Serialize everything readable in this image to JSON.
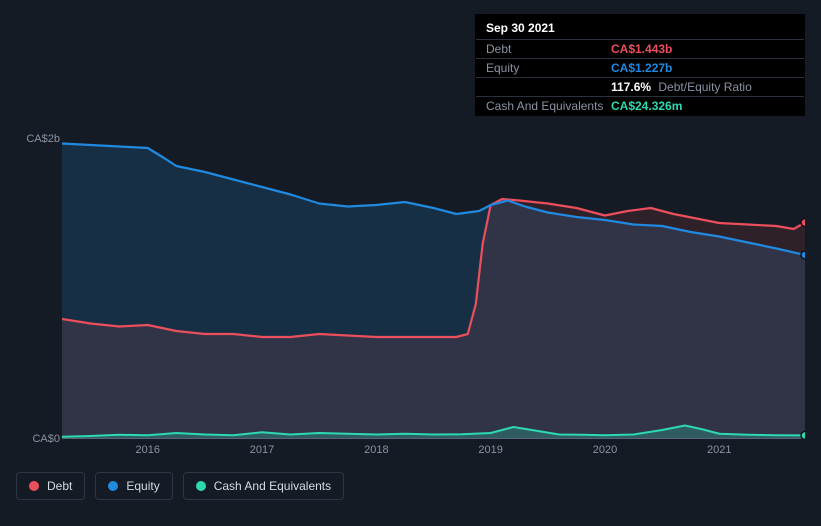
{
  "tooltip": {
    "title": "Sep 30 2021",
    "rows": [
      {
        "label": "Debt",
        "value": "CA$1.443b",
        "color": "#eb4f5c",
        "extra": ""
      },
      {
        "label": "Equity",
        "value": "CA$1.227b",
        "color": "#1f8ae0",
        "extra": ""
      },
      {
        "label": "",
        "value": "117.6%",
        "color": "#ffffff",
        "extra": "Debt/Equity Ratio"
      },
      {
        "label": "Cash And Equivalents",
        "value": "CA$24.326m",
        "color": "#2dd9b0",
        "extra": ""
      }
    ]
  },
  "chart": {
    "background": "#151b24",
    "plot_bg_left": "#1b2a3e",
    "plot_bg_right": "#2a1f2e",
    "grid_color": "#2a3240",
    "y_axis": {
      "min": 0,
      "max": 2000,
      "ticks": [
        {
          "v": 0,
          "label": "CA$0"
        },
        {
          "v": 2000,
          "label": "CA$2b"
        }
      ]
    },
    "x_axis": {
      "min": 2015.25,
      "max": 2021.75,
      "ticks": [
        2016,
        2017,
        2018,
        2019,
        2020,
        2021
      ]
    },
    "series": {
      "equity": {
        "label": "Equity",
        "color": "#1f8ae0",
        "fill": "#1f8ae0",
        "fill_opacity": 0.18,
        "width": 2.2,
        "points": [
          [
            2015.25,
            1970
          ],
          [
            2015.5,
            1960
          ],
          [
            2015.75,
            1950
          ],
          [
            2016.0,
            1940
          ],
          [
            2016.15,
            1870
          ],
          [
            2016.25,
            1820
          ],
          [
            2016.5,
            1780
          ],
          [
            2016.75,
            1730
          ],
          [
            2017.0,
            1680
          ],
          [
            2017.25,
            1630
          ],
          [
            2017.5,
            1570
          ],
          [
            2017.75,
            1550
          ],
          [
            2018.0,
            1560
          ],
          [
            2018.25,
            1580
          ],
          [
            2018.5,
            1540
          ],
          [
            2018.7,
            1500
          ],
          [
            2018.9,
            1520
          ],
          [
            2019.0,
            1560
          ],
          [
            2019.15,
            1590
          ],
          [
            2019.3,
            1550
          ],
          [
            2019.5,
            1510
          ],
          [
            2019.75,
            1480
          ],
          [
            2020.0,
            1460
          ],
          [
            2020.25,
            1430
          ],
          [
            2020.5,
            1420
          ],
          [
            2020.75,
            1380
          ],
          [
            2021.0,
            1350
          ],
          [
            2021.25,
            1310
          ],
          [
            2021.5,
            1270
          ],
          [
            2021.75,
            1227
          ]
        ]
      },
      "debt": {
        "label": "Debt",
        "color": "#eb4f5c",
        "fill": "#eb4f5c",
        "fill_opacity": 0.12,
        "width": 2.2,
        "points": [
          [
            2015.25,
            800
          ],
          [
            2015.5,
            770
          ],
          [
            2015.75,
            750
          ],
          [
            2016.0,
            760
          ],
          [
            2016.25,
            720
          ],
          [
            2016.5,
            700
          ],
          [
            2016.75,
            700
          ],
          [
            2017.0,
            680
          ],
          [
            2017.25,
            680
          ],
          [
            2017.5,
            700
          ],
          [
            2017.75,
            690
          ],
          [
            2018.0,
            680
          ],
          [
            2018.25,
            680
          ],
          [
            2018.5,
            680
          ],
          [
            2018.7,
            680
          ],
          [
            2018.8,
            700
          ],
          [
            2018.87,
            900
          ],
          [
            2018.93,
            1300
          ],
          [
            2019.0,
            1560
          ],
          [
            2019.1,
            1600
          ],
          [
            2019.25,
            1590
          ],
          [
            2019.5,
            1570
          ],
          [
            2019.75,
            1540
          ],
          [
            2020.0,
            1490
          ],
          [
            2020.2,
            1520
          ],
          [
            2020.4,
            1540
          ],
          [
            2020.6,
            1500
          ],
          [
            2020.8,
            1470
          ],
          [
            2021.0,
            1440
          ],
          [
            2021.25,
            1430
          ],
          [
            2021.5,
            1420
          ],
          [
            2021.65,
            1400
          ],
          [
            2021.75,
            1443
          ]
        ]
      },
      "cash": {
        "label": "Cash And Equivalents",
        "color": "#2dd9b0",
        "fill": "#2dd9b0",
        "fill_opacity": 0.25,
        "width": 2,
        "points": [
          [
            2015.25,
            15
          ],
          [
            2015.5,
            20
          ],
          [
            2015.75,
            28
          ],
          [
            2016.0,
            25
          ],
          [
            2016.25,
            40
          ],
          [
            2016.5,
            30
          ],
          [
            2016.75,
            25
          ],
          [
            2017.0,
            45
          ],
          [
            2017.25,
            30
          ],
          [
            2017.5,
            40
          ],
          [
            2017.75,
            35
          ],
          [
            2018.0,
            30
          ],
          [
            2018.25,
            35
          ],
          [
            2018.5,
            30
          ],
          [
            2018.75,
            32
          ],
          [
            2019.0,
            40
          ],
          [
            2019.2,
            80
          ],
          [
            2019.4,
            55
          ],
          [
            2019.6,
            30
          ],
          [
            2019.8,
            28
          ],
          [
            2020.0,
            25
          ],
          [
            2020.25,
            30
          ],
          [
            2020.5,
            60
          ],
          [
            2020.7,
            90
          ],
          [
            2020.85,
            65
          ],
          [
            2021.0,
            35
          ],
          [
            2021.25,
            28
          ],
          [
            2021.5,
            25
          ],
          [
            2021.75,
            24
          ]
        ]
      }
    },
    "end_markers": [
      {
        "series": "debt",
        "color": "#eb4f5c"
      },
      {
        "series": "equity",
        "color": "#1f8ae0"
      },
      {
        "series": "cash",
        "color": "#2dd9b0"
      }
    ],
    "legend": [
      {
        "key": "debt",
        "label": "Debt",
        "color": "#eb4f5c"
      },
      {
        "key": "equity",
        "label": "Equity",
        "color": "#1f8ae0"
      },
      {
        "key": "cash",
        "label": "Cash And Equivalents",
        "color": "#2dd9b0"
      }
    ]
  }
}
